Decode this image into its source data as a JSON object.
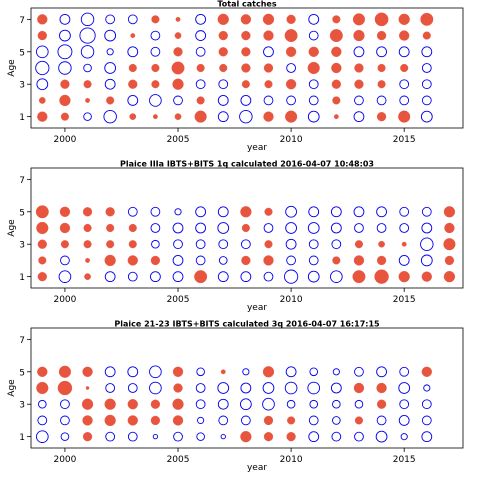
{
  "colors": {
    "positive": "#e8553f",
    "negative": "#0000ee"
  },
  "chart_data": [
    {
      "type": "scatter",
      "title": "Total catches",
      "xlabel": "year",
      "ylabel": "Age",
      "xlim": [
        1998.5,
        2017.6
      ],
      "ylim": [
        0.3,
        7.7
      ],
      "xticks": [
        2000,
        2005,
        2010,
        2015
      ],
      "yticks": [
        1,
        3,
        5,
        7
      ],
      "grid": false,
      "years": [
        1999,
        2000,
        2001,
        2002,
        2003,
        2004,
        2005,
        2006,
        2007,
        2008,
        2009,
        2010,
        2011,
        2012,
        2013,
        2014,
        2015,
        2016,
        2017
      ],
      "ages": [
        1,
        2,
        3,
        4,
        5,
        6,
        7
      ],
      "residuals": {
        "7": [
          0.5,
          -0.5,
          -0.8,
          -0.4,
          -0.4,
          0.3,
          0.1,
          -0.5,
          0.6,
          0.5,
          0.6,
          0.4,
          -0.5,
          0.3,
          0.7,
          0.9,
          0.6,
          0.8,
          0
        ],
        "6": [
          0.4,
          -0.6,
          -1.2,
          -0.6,
          0.1,
          -0.4,
          0.2,
          -0.5,
          0.4,
          0.4,
          0.5,
          0.8,
          -0.4,
          0.8,
          0.6,
          0.4,
          0.5,
          0.3,
          0
        ],
        "5": [
          -0.7,
          -1.0,
          -0.8,
          -0.2,
          -0.5,
          -0.4,
          0.4,
          -0.4,
          0.4,
          0.4,
          -0.5,
          0.5,
          0.5,
          0.5,
          -0.5,
          -0.5,
          -0.5,
          -0.5,
          0
        ],
        "4": [
          -0.9,
          -0.8,
          -0.3,
          -0.6,
          0.3,
          0.3,
          0.8,
          0.3,
          0.3,
          0.4,
          0.4,
          -0.4,
          0.7,
          0.5,
          0.4,
          0.3,
          0.3,
          -0.4,
          0
        ],
        "3": [
          -0.6,
          0.4,
          0.3,
          -0.5,
          0.4,
          0.3,
          0.6,
          -0.4,
          -0.4,
          0.3,
          0.3,
          0.5,
          -0.4,
          0.4,
          0.4,
          0.3,
          -0.4,
          -0.4,
          0
        ],
        "2": [
          0.2,
          0.6,
          0.1,
          0.3,
          -0.5,
          -0.7,
          -0.4,
          0.3,
          -0.5,
          -0.5,
          -0.4,
          -0.4,
          -0.4,
          0.3,
          -0.4,
          -0.4,
          -0.4,
          -0.4,
          0
        ],
        "1": [
          0.5,
          0.3,
          -0.3,
          -0.8,
          0.2,
          0.1,
          0.2,
          0.7,
          -0.5,
          -0.8,
          0.5,
          0.7,
          -0.6,
          0.1,
          -0.5,
          0.4,
          0.7,
          -0.6,
          0
        ]
      }
    },
    {
      "type": "scatter",
      "title": "Plaice IIIa IBTS+BITS 1q calculated 2016-04-07 10:48:03",
      "xlabel": "year",
      "ylabel": "Age",
      "xlim": [
        1998.5,
        2017.6
      ],
      "ylim": [
        0.3,
        7.7
      ],
      "xticks": [
        2000,
        2005,
        2010,
        2015
      ],
      "yticks": [
        1,
        3,
        5,
        7
      ],
      "grid": false,
      "years": [
        1999,
        2000,
        2001,
        2002,
        2003,
        2004,
        2005,
        2006,
        2007,
        2008,
        2009,
        2010,
        2011,
        2012,
        2013,
        2014,
        2015,
        2016,
        2017
      ],
      "ages": [
        1,
        2,
        3,
        4,
        5,
        6,
        7
      ],
      "residuals": {
        "5": [
          0.8,
          0.5,
          0.4,
          0.4,
          -0.4,
          -0.4,
          -0.2,
          -0.5,
          -0.5,
          0.6,
          0.3,
          -0.6,
          -0.5,
          -0.5,
          -0.5,
          -0.5,
          -0.4,
          -0.4,
          0.6
        ],
        "4": [
          0.7,
          0.5,
          0.3,
          0.3,
          0.3,
          -0.4,
          -0.5,
          -0.5,
          -0.6,
          0.3,
          -0.4,
          -0.6,
          -0.6,
          -0.5,
          -0.4,
          -0.4,
          -0.4,
          -0.5,
          0.5
        ],
        "3": [
          0.4,
          0.3,
          0.3,
          0.3,
          0.3,
          -0.3,
          -0.4,
          -0.4,
          -0.4,
          -0.4,
          0.3,
          -0.5,
          -0.4,
          -0.4,
          0.3,
          0.2,
          0.1,
          -0.8,
          0.7
        ],
        "2": [
          0.3,
          -0.4,
          0.1,
          0.6,
          0.5,
          0.4,
          -0.5,
          -0.4,
          -0.3,
          0.4,
          0.5,
          -0.4,
          -0.4,
          0.3,
          0.5,
          0.4,
          -0.5,
          -0.6,
          0.4
        ],
        "1": [
          0.4,
          -0.7,
          0.2,
          -0.5,
          -0.4,
          -0.5,
          -0.5,
          0.8,
          -0.5,
          -0.5,
          -0.4,
          -0.9,
          -0.6,
          -0.7,
          0.8,
          1.0,
          0.6,
          0.5,
          0.6
        ]
      }
    },
    {
      "type": "scatter",
      "title": "Plaice 21-23 IBTS+BITS calculated 3q 2016-04-07 16:17:15",
      "xlabel": "year",
      "ylabel": "Age",
      "xlim": [
        1998.5,
        2017.6
      ],
      "ylim": [
        0.3,
        7.7
      ],
      "xticks": [
        2000,
        2005,
        2010,
        2015
      ],
      "yticks": [
        1,
        3,
        5,
        7
      ],
      "grid": false,
      "years": [
        1999,
        2000,
        2001,
        2002,
        2003,
        2004,
        2005,
        2006,
        2007,
        2008,
        2009,
        2010,
        2011,
        2012,
        2013,
        2014,
        2015,
        2016,
        2017
      ],
      "ages": [
        1,
        2,
        3,
        4,
        5,
        6,
        7
      ],
      "residuals": {
        "5": [
          0.5,
          0.7,
          0.5,
          -0.5,
          -0.5,
          -0.7,
          0.5,
          -0.3,
          0.1,
          -0.2,
          0.6,
          -0.5,
          -0.3,
          -0.2,
          -0.4,
          -0.5,
          -0.4,
          0.5,
          0
        ],
        "4": [
          0.7,
          1.0,
          0.05,
          -0.4,
          -0.4,
          -0.7,
          0.4,
          -0.4,
          -0.6,
          -0.5,
          -0.6,
          -0.7,
          -0.7,
          -0.5,
          0.5,
          0.5,
          -0.6,
          -0.2,
          0
        ],
        "3": [
          -0.3,
          -0.4,
          0.6,
          0.6,
          0.5,
          0.4,
          0.6,
          -0.4,
          -0.5,
          -0.6,
          -0.7,
          -0.3,
          -0.3,
          -0.3,
          -0.3,
          0.4,
          -0.4,
          -0.4,
          0
        ],
        "2": [
          -0.4,
          -0.4,
          0.5,
          0.6,
          0.5,
          0.4,
          0.5,
          -0.2,
          -0.4,
          -0.4,
          0.4,
          0.3,
          -0.4,
          -0.3,
          0.3,
          -0.4,
          -0.5,
          -0.4,
          0
        ],
        "1": [
          -0.7,
          -0.3,
          0.4,
          -0.4,
          -0.4,
          -0.1,
          -0.4,
          -0.3,
          -0.1,
          0.6,
          0.4,
          0.4,
          -0.5,
          -0.4,
          -0.4,
          -0.6,
          -0.2,
          -0.5,
          0
        ]
      }
    }
  ]
}
